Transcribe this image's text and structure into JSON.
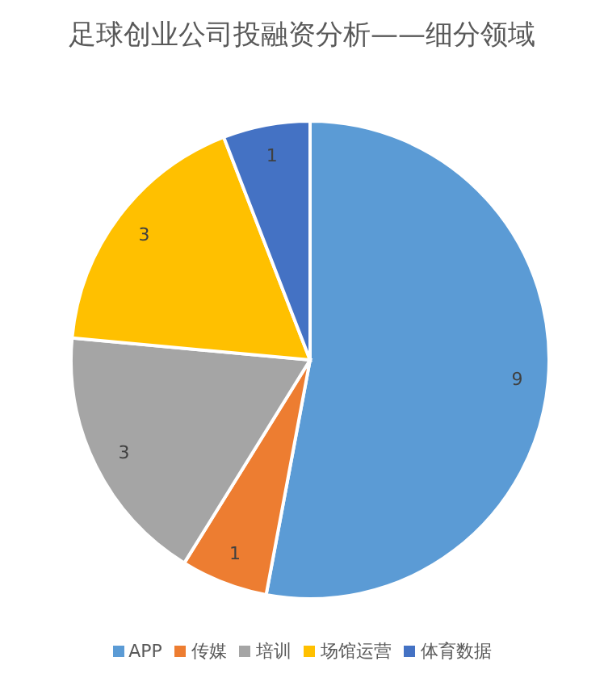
{
  "chart_data": {
    "type": "pie",
    "title": "足球创业公司投融资分析——细分领域",
    "categories": [
      "APP",
      "传媒",
      "培训",
      "场馆运营",
      "体育数据"
    ],
    "values": [
      9,
      1,
      3,
      3,
      1
    ],
    "colors": [
      "#5b9bd5",
      "#ed7d31",
      "#a5a5a5",
      "#ffc000",
      "#4472c4"
    ],
    "data_labels": true,
    "legend": "bottom"
  }
}
